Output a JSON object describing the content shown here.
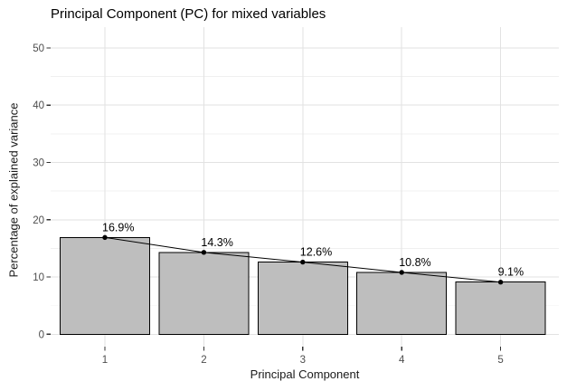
{
  "chart_data": {
    "type": "bar",
    "subtype": "scree-plot-with-line-overlay",
    "title": "Principal Component (PC) for mixed variables",
    "xlabel": "Principal Component",
    "ylabel": "Percentage of explained variance",
    "categories": [
      "1",
      "2",
      "3",
      "4",
      "5"
    ],
    "values": [
      16.9,
      14.3,
      12.6,
      10.8,
      9.1
    ],
    "point_labels": [
      "16.9%",
      "14.3%",
      "12.6%",
      "10.8%",
      "9.1%"
    ],
    "yticks": [
      0,
      10,
      20,
      30,
      40,
      50
    ],
    "yticks_minor": [
      5,
      15,
      25,
      35,
      45
    ],
    "ylim": [
      0,
      53.5
    ],
    "grid": true,
    "legend_position": "none",
    "colors": {
      "bar_fill": "#bebebe",
      "bar_border": "#000000",
      "line": "#000000",
      "point": "#000000",
      "grid_major": "#e2e2e2",
      "grid_minor": "#f0f0f0",
      "tick_text": "#4d4d4d",
      "tick_mark": "#333333",
      "axis_title": "#1a1a1a",
      "title": "#000000",
      "background": "#ffffff"
    }
  }
}
